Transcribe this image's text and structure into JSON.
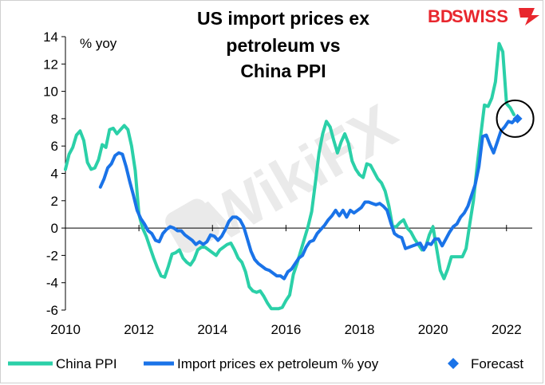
{
  "brand": {
    "logo_text_1": "BD",
    "logo_text_2": "SWISS",
    "logo_color": "#e8262d"
  },
  "watermark": {
    "text": "WikiFX"
  },
  "chart_data": {
    "type": "line",
    "title_lines": [
      "US import prices ex",
      "petroleum vs",
      "China PPI"
    ],
    "unit_label": "% yoy",
    "xlim": [
      2010,
      2022.7
    ],
    "ylim": [
      -6,
      14
    ],
    "x_ticks": [
      2010,
      2012,
      2014,
      2016,
      2018,
      2020,
      2022
    ],
    "x_tick_labels": [
      "2010",
      "2012",
      "2014",
      "2016",
      "2018",
      "2020",
      "2022"
    ],
    "y_ticks": [
      -6,
      -4,
      -2,
      0,
      2,
      4,
      6,
      8,
      10,
      12,
      14
    ],
    "y_tick_labels": [
      "-6",
      "-4",
      "-2",
      "0",
      "2",
      "4",
      "6",
      "8",
      "10",
      "12",
      "14"
    ],
    "grid": false,
    "legend_position": "bottom",
    "series": [
      {
        "name": "China PPI",
        "color": "#2bd0a8",
        "points": [
          [
            2010.0,
            4.3
          ],
          [
            2010.1,
            5.4
          ],
          [
            2010.2,
            5.9
          ],
          [
            2010.3,
            6.8
          ],
          [
            2010.4,
            7.1
          ],
          [
            2010.5,
            6.4
          ],
          [
            2010.6,
            4.8
          ],
          [
            2010.7,
            4.3
          ],
          [
            2010.8,
            4.4
          ],
          [
            2010.9,
            5.0
          ],
          [
            2011.0,
            6.1
          ],
          [
            2011.1,
            5.9
          ],
          [
            2011.2,
            7.2
          ],
          [
            2011.3,
            7.3
          ],
          [
            2011.4,
            6.9
          ],
          [
            2011.5,
            7.2
          ],
          [
            2011.6,
            7.5
          ],
          [
            2011.7,
            7.2
          ],
          [
            2011.8,
            6.0
          ],
          [
            2011.9,
            4.2
          ],
          [
            2012.0,
            1.0
          ],
          [
            2012.1,
            0.0
          ],
          [
            2012.2,
            -0.6
          ],
          [
            2012.3,
            -1.4
          ],
          [
            2012.4,
            -2.2
          ],
          [
            2012.5,
            -2.9
          ],
          [
            2012.6,
            -3.5
          ],
          [
            2012.7,
            -3.6
          ],
          [
            2012.8,
            -2.8
          ],
          [
            2012.9,
            -1.9
          ],
          [
            2013.0,
            -1.8
          ],
          [
            2013.1,
            -1.6
          ],
          [
            2013.2,
            -2.2
          ],
          [
            2013.3,
            -2.5
          ],
          [
            2013.4,
            -2.7
          ],
          [
            2013.5,
            -2.3
          ],
          [
            2013.6,
            -1.6
          ],
          [
            2013.7,
            -1.4
          ],
          [
            2013.8,
            -1.4
          ],
          [
            2013.9,
            -1.6
          ],
          [
            2014.0,
            -1.8
          ],
          [
            2014.1,
            -2.0
          ],
          [
            2014.2,
            -1.6
          ],
          [
            2014.3,
            -1.4
          ],
          [
            2014.4,
            -1.2
          ],
          [
            2014.5,
            -1.1
          ],
          [
            2014.6,
            -1.6
          ],
          [
            2014.7,
            -2.2
          ],
          [
            2014.8,
            -2.5
          ],
          [
            2014.9,
            -3.2
          ],
          [
            2015.0,
            -4.3
          ],
          [
            2015.1,
            -4.6
          ],
          [
            2015.2,
            -4.7
          ],
          [
            2015.3,
            -4.6
          ],
          [
            2015.4,
            -5.0
          ],
          [
            2015.5,
            -5.5
          ],
          [
            2015.6,
            -5.9
          ],
          [
            2015.7,
            -5.9
          ],
          [
            2015.8,
            -5.9
          ],
          [
            2015.9,
            -5.8
          ],
          [
            2016.0,
            -5.3
          ],
          [
            2016.1,
            -4.9
          ],
          [
            2016.2,
            -3.4
          ],
          [
            2016.3,
            -2.6
          ],
          [
            2016.4,
            -1.7
          ],
          [
            2016.5,
            -0.8
          ],
          [
            2016.6,
            0.1
          ],
          [
            2016.7,
            1.2
          ],
          [
            2016.8,
            3.3
          ],
          [
            2016.9,
            5.5
          ],
          [
            2017.0,
            6.9
          ],
          [
            2017.1,
            7.8
          ],
          [
            2017.2,
            7.4
          ],
          [
            2017.3,
            6.4
          ],
          [
            2017.4,
            5.5
          ],
          [
            2017.5,
            6.3
          ],
          [
            2017.6,
            6.9
          ],
          [
            2017.7,
            6.2
          ],
          [
            2017.8,
            4.9
          ],
          [
            2017.9,
            4.3
          ],
          [
            2018.0,
            3.9
          ],
          [
            2018.1,
            3.7
          ],
          [
            2018.2,
            4.7
          ],
          [
            2018.3,
            4.6
          ],
          [
            2018.4,
            4.1
          ],
          [
            2018.5,
            3.6
          ],
          [
            2018.6,
            3.3
          ],
          [
            2018.7,
            2.7
          ],
          [
            2018.8,
            1.6
          ],
          [
            2018.9,
            0.1
          ],
          [
            2019.0,
            0.1
          ],
          [
            2019.1,
            0.4
          ],
          [
            2019.2,
            0.6
          ],
          [
            2019.3,
            0.0
          ],
          [
            2019.4,
            -0.3
          ],
          [
            2019.5,
            -0.8
          ],
          [
            2019.6,
            -1.2
          ],
          [
            2019.7,
            -1.6
          ],
          [
            2019.8,
            -1.4
          ],
          [
            2019.9,
            -0.5
          ],
          [
            2020.0,
            0.1
          ],
          [
            2020.1,
            -1.5
          ],
          [
            2020.2,
            -3.1
          ],
          [
            2020.3,
            -3.7
          ],
          [
            2020.4,
            -3.0
          ],
          [
            2020.5,
            -2.1
          ],
          [
            2020.6,
            -2.1
          ],
          [
            2020.7,
            -2.1
          ],
          [
            2020.8,
            -2.1
          ],
          [
            2020.9,
            -1.5
          ],
          [
            2021.0,
            0.3
          ],
          [
            2021.1,
            2.0
          ],
          [
            2021.2,
            4.5
          ],
          [
            2021.3,
            6.8
          ],
          [
            2021.4,
            9.0
          ],
          [
            2021.5,
            8.9
          ],
          [
            2021.6,
            9.5
          ],
          [
            2021.7,
            10.7
          ],
          [
            2021.8,
            13.5
          ],
          [
            2021.9,
            12.9
          ],
          [
            2022.0,
            9.1
          ],
          [
            2022.1,
            8.8
          ],
          [
            2022.2,
            8.3
          ]
        ]
      },
      {
        "name": "Import prices ex petroleum % yoy",
        "color": "#1a73e8",
        "points": [
          [
            2010.95,
            3.0
          ],
          [
            2011.05,
            3.6
          ],
          [
            2011.15,
            4.4
          ],
          [
            2011.25,
            4.7
          ],
          [
            2011.35,
            5.3
          ],
          [
            2011.45,
            5.5
          ],
          [
            2011.55,
            5.4
          ],
          [
            2011.65,
            4.5
          ],
          [
            2011.75,
            3.4
          ],
          [
            2011.85,
            2.4
          ],
          [
            2011.95,
            1.3
          ],
          [
            2012.05,
            0.7
          ],
          [
            2012.15,
            0.3
          ],
          [
            2012.25,
            -0.2
          ],
          [
            2012.35,
            -0.4
          ],
          [
            2012.45,
            -0.9
          ],
          [
            2012.55,
            -1.0
          ],
          [
            2012.65,
            -0.4
          ],
          [
            2012.75,
            -0.1
          ],
          [
            2012.85,
            0.1
          ],
          [
            2012.95,
            0.0
          ],
          [
            2013.05,
            -0.2
          ],
          [
            2013.15,
            -0.2
          ],
          [
            2013.25,
            -0.5
          ],
          [
            2013.35,
            -0.7
          ],
          [
            2013.45,
            -0.9
          ],
          [
            2013.55,
            -1.2
          ],
          [
            2013.65,
            -1.0
          ],
          [
            2013.75,
            -1.2
          ],
          [
            2013.85,
            -1.0
          ],
          [
            2013.95,
            -0.5
          ],
          [
            2014.05,
            -0.6
          ],
          [
            2014.15,
            -0.9
          ],
          [
            2014.25,
            -0.6
          ],
          [
            2014.35,
            -0.1
          ],
          [
            2014.45,
            0.5
          ],
          [
            2014.55,
            0.8
          ],
          [
            2014.65,
            0.8
          ],
          [
            2014.75,
            0.6
          ],
          [
            2014.85,
            0.1
          ],
          [
            2014.95,
            -0.8
          ],
          [
            2015.05,
            -1.7
          ],
          [
            2015.15,
            -2.3
          ],
          [
            2015.25,
            -2.6
          ],
          [
            2015.35,
            -2.8
          ],
          [
            2015.45,
            -3.0
          ],
          [
            2015.55,
            -3.1
          ],
          [
            2015.65,
            -3.3
          ],
          [
            2015.75,
            -3.5
          ],
          [
            2015.85,
            -3.5
          ],
          [
            2015.95,
            -3.7
          ],
          [
            2016.05,
            -3.2
          ],
          [
            2016.15,
            -3.0
          ],
          [
            2016.25,
            -2.6
          ],
          [
            2016.35,
            -2.2
          ],
          [
            2016.45,
            -2.0
          ],
          [
            2016.55,
            -1.4
          ],
          [
            2016.65,
            -1.0
          ],
          [
            2016.75,
            -0.9
          ],
          [
            2016.85,
            -0.4
          ],
          [
            2016.95,
            -0.1
          ],
          [
            2017.05,
            0.2
          ],
          [
            2017.15,
            0.6
          ],
          [
            2017.25,
            0.9
          ],
          [
            2017.35,
            1.3
          ],
          [
            2017.45,
            0.9
          ],
          [
            2017.55,
            1.3
          ],
          [
            2017.65,
            0.8
          ],
          [
            2017.75,
            1.3
          ],
          [
            2017.85,
            1.1
          ],
          [
            2017.95,
            1.3
          ],
          [
            2018.05,
            1.5
          ],
          [
            2018.15,
            1.9
          ],
          [
            2018.25,
            1.9
          ],
          [
            2018.35,
            1.8
          ],
          [
            2018.45,
            1.7
          ],
          [
            2018.55,
            1.8
          ],
          [
            2018.65,
            1.6
          ],
          [
            2018.75,
            1.3
          ],
          [
            2018.85,
            0.4
          ],
          [
            2018.95,
            -0.4
          ],
          [
            2019.05,
            -0.6
          ],
          [
            2019.15,
            -0.7
          ],
          [
            2019.25,
            -1.5
          ],
          [
            2019.35,
            -1.4
          ],
          [
            2019.45,
            -1.3
          ],
          [
            2019.55,
            -1.2
          ],
          [
            2019.65,
            -1.1
          ],
          [
            2019.75,
            -1.6
          ],
          [
            2019.85,
            -1.1
          ],
          [
            2019.95,
            -1.2
          ],
          [
            2020.05,
            -0.8
          ],
          [
            2020.15,
            -0.8
          ],
          [
            2020.25,
            -1.3
          ],
          [
            2020.35,
            -0.8
          ],
          [
            2020.45,
            -0.3
          ],
          [
            2020.55,
            0.1
          ],
          [
            2020.65,
            0.3
          ],
          [
            2020.75,
            0.8
          ],
          [
            2020.85,
            1.1
          ],
          [
            2020.95,
            1.6
          ],
          [
            2021.05,
            2.4
          ],
          [
            2021.15,
            3.2
          ],
          [
            2021.25,
            4.5
          ],
          [
            2021.35,
            6.7
          ],
          [
            2021.45,
            6.8
          ],
          [
            2021.55,
            6.1
          ],
          [
            2021.65,
            5.5
          ],
          [
            2021.75,
            6.3
          ],
          [
            2021.85,
            7.1
          ],
          [
            2021.95,
            7.4
          ],
          [
            2022.05,
            7.8
          ],
          [
            2022.15,
            7.7
          ],
          [
            2022.25,
            8.0
          ]
        ]
      }
    ],
    "forecast": {
      "name": "Forecast",
      "color": "#1a73e8",
      "points": [
        [
          2022.3,
          8.0
        ]
      ]
    },
    "annotation": {
      "type": "circle",
      "center": [
        2022.3,
        8.0
      ]
    }
  }
}
